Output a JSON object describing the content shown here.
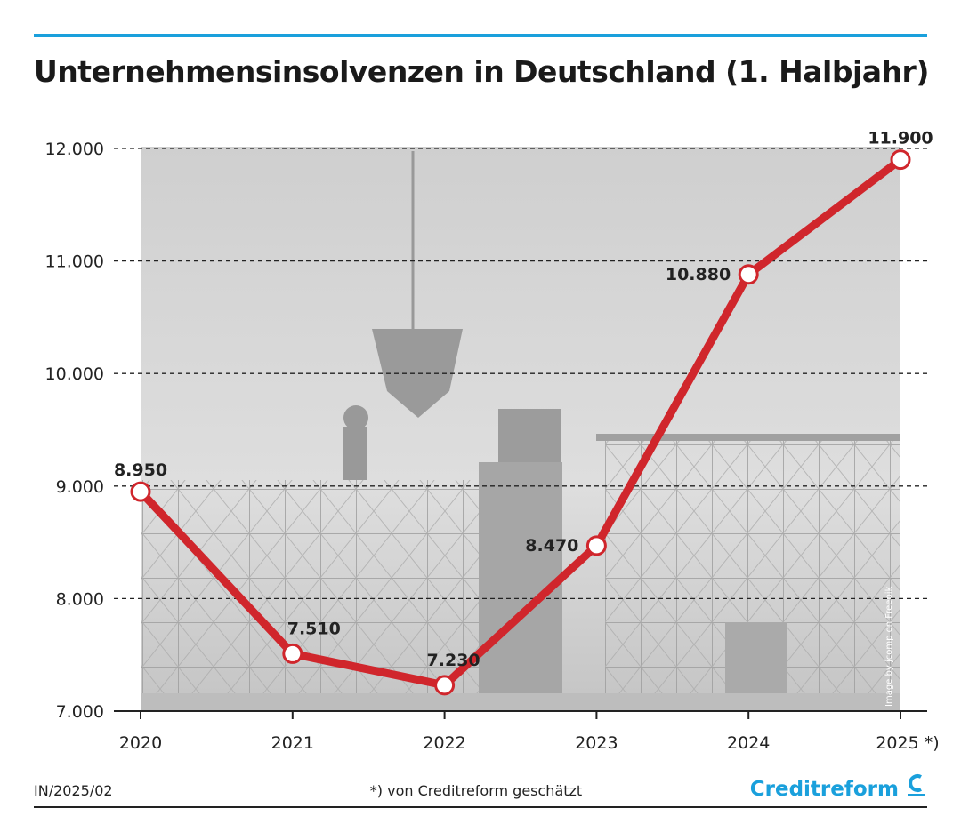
{
  "chart_data": {
    "type": "line",
    "title": "Unternehmensinsolvenzen in Deutschland (1. Halbjahr)",
    "categories": [
      "2020",
      "2021",
      "2022",
      "2023",
      "2024",
      "2025"
    ],
    "x_tick_labels": [
      "2020",
      "2021",
      "2022",
      "2023",
      "2024",
      "2025 *)"
    ],
    "values": [
      8950,
      7510,
      7230,
      8470,
      10880,
      11900
    ],
    "data_labels": [
      "8.950",
      "7.510",
      "7.230",
      "8.470",
      "10.880",
      "11.900"
    ],
    "ylim": [
      7000,
      12000
    ],
    "y_ticks": [
      7000,
      8000,
      9000,
      10000,
      11000,
      12000
    ],
    "y_tick_labels": [
      "7.000",
      "8.000",
      "9.000",
      "10.000",
      "11.000",
      "12.000"
    ],
    "grid": true,
    "xlabel": "",
    "ylabel": "",
    "line_color": "#d0262c",
    "accent_color": "#1aa0dc"
  },
  "footer": {
    "code": "IN/2025/02",
    "note": "*) von Creditreform geschätzt",
    "logo": "Creditreform"
  },
  "image_credit": "Image by jcomp on Freepik"
}
